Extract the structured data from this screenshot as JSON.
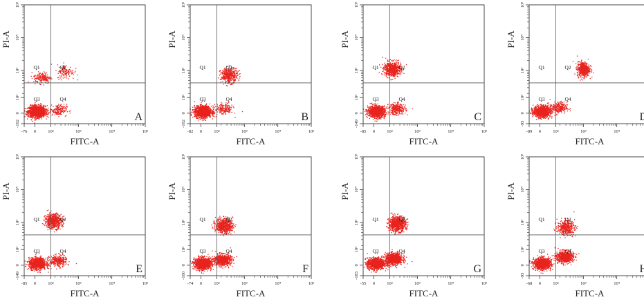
{
  "chart_data": [
    {
      "type": "scatter",
      "panel": "A",
      "xlabel": "FITC-A",
      "ylabel": "PI-A",
      "x_ticks": [
        "-76",
        "0",
        "10²",
        "10³",
        "10⁴",
        "10⁵"
      ],
      "y_ticks": [
        "-102",
        "0",
        "10²",
        "10³",
        "10⁴",
        "10⁵"
      ],
      "quadrants": [
        "Q1",
        "Q2",
        "Q3",
        "Q4"
      ],
      "gate": {
        "x": 150,
        "y": 420
      },
      "clusters": [
        {
          "x": 20,
          "y": 15,
          "n": 1400
        },
        {
          "x": 250,
          "y": 30,
          "n": 180
        },
        {
          "x": 70,
          "y": 600,
          "n": 180
        },
        {
          "x": 420,
          "y": 900,
          "n": 120
        }
      ]
    },
    {
      "type": "scatter",
      "panel": "B",
      "xlabel": "FITC-A",
      "ylabel": "PI-A",
      "x_ticks": [
        "-82",
        "0",
        "10²",
        "10³",
        "10⁴",
        "10⁵"
      ],
      "y_ticks": [
        "-102",
        "0",
        "10²",
        "10³",
        "10⁴",
        "10⁵"
      ],
      "quadrants": [
        "Q1",
        "Q2",
        "Q3",
        "Q4"
      ],
      "gate": {
        "x": 150,
        "y": 420
      },
      "clusters": [
        {
          "x": 20,
          "y": 15,
          "n": 1300
        },
        {
          "x": 250,
          "y": 40,
          "n": 180
        },
        {
          "x": 350,
          "y": 700,
          "n": 420
        }
      ]
    },
    {
      "type": "scatter",
      "panel": "C",
      "xlabel": "FITC-A",
      "ylabel": "PI-A",
      "x_ticks": [
        "-85",
        "0",
        "10²",
        "10³",
        "10⁴",
        "10⁵"
      ],
      "y_ticks": [
        "-149",
        "0",
        "10²",
        "10³",
        "10⁴",
        "10⁵"
      ],
      "quadrants": [
        "Q1",
        "Q2",
        "Q3",
        "Q4"
      ],
      "gate": {
        "x": 150,
        "y": 420
      },
      "clusters": [
        {
          "x": 25,
          "y": 15,
          "n": 1000
        },
        {
          "x": 250,
          "y": 40,
          "n": 300
        },
        {
          "x": 180,
          "y": 1100,
          "n": 600
        }
      ]
    },
    {
      "type": "scatter",
      "panel": "D",
      "xlabel": "FITC-A",
      "ylabel": "PI-A",
      "x_ticks": [
        "-89",
        "0",
        "10²",
        "10³",
        "10⁴",
        "10⁵"
      ],
      "y_ticks": [
        "-95",
        "0",
        "10²",
        "10³",
        "10⁴",
        "10⁵"
      ],
      "quadrants": [
        "Q1",
        "Q2",
        "Q3",
        "Q4"
      ],
      "gate": {
        "x": 150,
        "y": 420
      },
      "clusters": [
        {
          "x": 20,
          "y": 15,
          "n": 1000
        },
        {
          "x": 180,
          "y": 50,
          "n": 260
        },
        {
          "x": 1000,
          "y": 1100,
          "n": 550
        }
      ]
    },
    {
      "type": "scatter",
      "panel": "E",
      "xlabel": "FITC-A",
      "ylabel": "PI-A",
      "x_ticks": [
        "-85",
        "0",
        "10²",
        "10³",
        "10⁴",
        "10⁵"
      ],
      "y_ticks": [
        "-149",
        "0",
        "10²",
        "10³",
        "10⁴",
        "10⁵"
      ],
      "quadrants": [
        "Q1",
        "Q2",
        "Q3",
        "Q4"
      ],
      "gate": {
        "x": 150,
        "y": 420
      },
      "clusters": [
        {
          "x": 25,
          "y": 15,
          "n": 1000
        },
        {
          "x": 250,
          "y": 40,
          "n": 300
        },
        {
          "x": 180,
          "y": 1100,
          "n": 600
        }
      ]
    },
    {
      "type": "scatter",
      "panel": "F",
      "xlabel": "FITC-A",
      "ylabel": "PI-A",
      "x_ticks": [
        "-74",
        "0",
        "10²",
        "10³",
        "10⁴",
        "10⁵"
      ],
      "y_ticks": [
        "-100",
        "0",
        "10²",
        "10³",
        "10⁴",
        "10⁵"
      ],
      "quadrants": [
        "Q1",
        "Q2",
        "Q3",
        "Q4"
      ],
      "gate": {
        "x": 150,
        "y": 420
      },
      "clusters": [
        {
          "x": 20,
          "y": 15,
          "n": 1100
        },
        {
          "x": 220,
          "y": 50,
          "n": 700
        },
        {
          "x": 250,
          "y": 800,
          "n": 650
        }
      ]
    },
    {
      "type": "scatter",
      "panel": "G",
      "xlabel": "FITC-A",
      "ylabel": "PI-A",
      "x_ticks": [
        "-55",
        "0",
        "10²",
        "10³",
        "10⁴",
        "10⁵"
      ],
      "y_ticks": [
        "-183",
        "0",
        "10²",
        "10³",
        "10⁴",
        "10⁵"
      ],
      "quadrants": [
        "Q1",
        "Q2",
        "Q3",
        "Q4"
      ],
      "gate": {
        "x": 150,
        "y": 420
      },
      "clusters": [
        {
          "x": 20,
          "y": 15,
          "n": 1100
        },
        {
          "x": 200,
          "y": 60,
          "n": 900
        },
        {
          "x": 250,
          "y": 900,
          "n": 800
        }
      ]
    },
    {
      "type": "scatter",
      "panel": "H",
      "xlabel": "FITC-A",
      "ylabel": "PI-A",
      "x_ticks": [
        "-68",
        "0",
        "10²",
        "10³",
        "10⁴",
        "10⁵"
      ],
      "y_ticks": [
        "-95",
        "0",
        "10²",
        "10³",
        "10⁴",
        "10⁵"
      ],
      "quadrants": [
        "Q1",
        "Q2",
        "Q3",
        "Q4"
      ],
      "gate": {
        "x": 150,
        "y": 420
      },
      "clusters": [
        {
          "x": 25,
          "y": 15,
          "n": 1000
        },
        {
          "x": 280,
          "y": 80,
          "n": 700
        },
        {
          "x": 300,
          "y": 700,
          "n": 400
        }
      ]
    }
  ],
  "colors": {
    "dots": "#e8231e",
    "axis": "#333333",
    "gate": "#555555"
  }
}
